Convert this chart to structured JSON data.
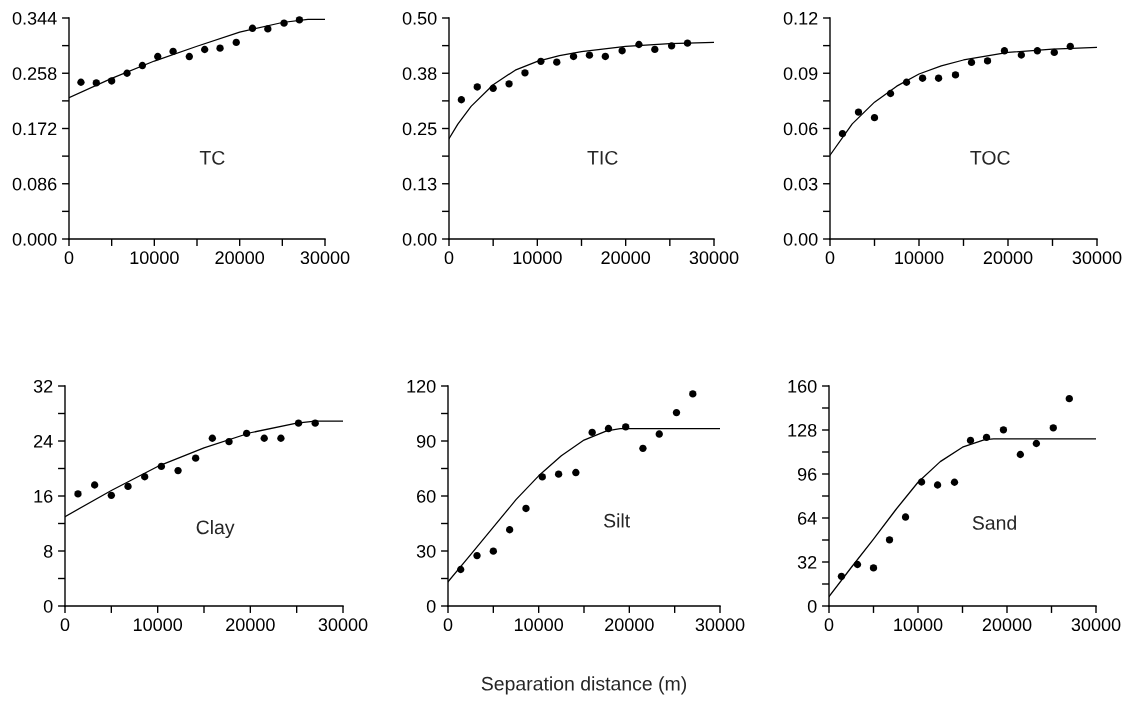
{
  "chart_data": [
    {
      "type": "scatter",
      "annotations": [
        "TC"
      ],
      "xlim": [
        0,
        30000
      ],
      "xticks": [
        0,
        {
          "value": 5000,
          "label": null
        },
        10000,
        {
          "value": 15000,
          "label": null
        },
        20000,
        {
          "value": 25000,
          "label": null
        },
        30000
      ],
      "ylim": [
        0,
        0.344
      ],
      "yticks": [
        {
          "value": 0,
          "label": "0.000"
        },
        {
          "value": 0.043,
          "label": null
        },
        0.086,
        {
          "value": 0.129,
          "label": null
        },
        0.172,
        {
          "value": 0.215,
          "label": null
        },
        0.258,
        {
          "value": 0.301,
          "label": null
        },
        0.344
      ],
      "grid": false,
      "series": [
        {
          "marker": "circle",
          "color": "#000000",
          "x": [
            1400,
            3200,
            5000,
            6800,
            8600,
            10400,
            12200,
            14100,
            15900,
            17700,
            19600,
            21500,
            23300,
            25200,
            27000
          ],
          "values": [
            0.244,
            0.243,
            0.246,
            0.258,
            0.27,
            0.284,
            0.292,
            0.284,
            0.295,
            0.297,
            0.306,
            0.328,
            0.327,
            0.336,
            0.341
          ]
        },
        {
          "type": "line",
          "color": "#000000",
          "x": [
            0,
            5000,
            10000,
            15000,
            20000,
            25000,
            28000,
            30000
          ],
          "values": [
            0.22,
            0.25,
            0.277,
            0.3,
            0.322,
            0.337,
            0.342,
            0.342
          ]
        }
      ]
    },
    {
      "type": "scatter",
      "annotations": [
        "TIC"
      ],
      "xlim": [
        0,
        30000
      ],
      "xticks": [
        0,
        {
          "value": 5000,
          "label": null
        },
        10000,
        {
          "value": 15000,
          "label": null
        },
        20000,
        {
          "value": 25000,
          "label": null
        },
        30000
      ],
      "ylim": [
        0,
        0.5
      ],
      "yticks": [
        {
          "value": 0,
          "label": "0.00"
        },
        {
          "value": 0.0625,
          "label": null
        },
        {
          "value": 0.125,
          "label": "0.13"
        },
        {
          "value": 0.1875,
          "label": null
        },
        {
          "value": 0.25,
          "label": "0.25"
        },
        {
          "value": 0.3125,
          "label": null
        },
        {
          "value": 0.375,
          "label": "0.38"
        },
        {
          "value": 0.4375,
          "label": null
        },
        {
          "value": 0.5,
          "label": "0.50"
        }
      ],
      "grid": false,
      "series": [
        {
          "marker": "circle",
          "color": "#000000",
          "x": [
            1400,
            3200,
            5000,
            6800,
            8600,
            10400,
            12200,
            14100,
            15900,
            17700,
            19600,
            21500,
            23300,
            25200,
            27000
          ],
          "values": [
            0.315,
            0.344,
            0.341,
            0.351,
            0.376,
            0.402,
            0.4,
            0.413,
            0.416,
            0.413,
            0.426,
            0.44,
            0.429,
            0.437,
            0.443
          ]
        },
        {
          "type": "line",
          "color": "#000000",
          "x": [
            0,
            1000,
            2500,
            5000,
            7500,
            10000,
            12500,
            15000,
            20000,
            25000,
            30000
          ],
          "values": [
            0.227,
            0.26,
            0.3,
            0.349,
            0.382,
            0.402,
            0.415,
            0.424,
            0.436,
            0.442,
            0.445
          ]
        }
      ]
    },
    {
      "type": "scatter",
      "annotations": [
        "TOC"
      ],
      "xlim": [
        0,
        30000
      ],
      "xticks": [
        0,
        {
          "value": 5000,
          "label": null
        },
        10000,
        {
          "value": 15000,
          "label": null
        },
        20000,
        {
          "value": 25000,
          "label": null
        },
        30000
      ],
      "ylim": [
        0,
        0.12
      ],
      "yticks": [
        {
          "value": 0,
          "label": "0.00"
        },
        {
          "value": 0.015,
          "label": null
        },
        {
          "value": 0.03,
          "label": "0.03"
        },
        {
          "value": 0.045,
          "label": null
        },
        {
          "value": 0.06,
          "label": "0.06"
        },
        {
          "value": 0.075,
          "label": null
        },
        {
          "value": 0.09,
          "label": "0.09"
        },
        {
          "value": 0.105,
          "label": null
        },
        {
          "value": 0.12,
          "label": "0.12"
        }
      ],
      "grid": false,
      "series": [
        {
          "marker": "circle",
          "color": "#000000",
          "x": [
            1400,
            3200,
            5000,
            6800,
            8600,
            10400,
            12200,
            14100,
            15900,
            17700,
            19600,
            21500,
            23300,
            25200,
            27000
          ],
          "values": [
            0.0572,
            0.0689,
            0.0659,
            0.079,
            0.0851,
            0.0873,
            0.0873,
            0.0891,
            0.0959,
            0.0967,
            0.1022,
            0.0999,
            0.1022,
            0.1013,
            0.1046
          ]
        },
        {
          "type": "line",
          "color": "#000000",
          "x": [
            0,
            2500,
            5000,
            7500,
            10000,
            12500,
            15000,
            20000,
            25000,
            30000
          ],
          "values": [
            0.0455,
            0.0625,
            0.0743,
            0.083,
            0.0896,
            0.094,
            0.0972,
            0.1013,
            0.1031,
            0.104
          ]
        }
      ]
    },
    {
      "type": "scatter",
      "annotations": [
        "Clay"
      ],
      "xlim": [
        0,
        30000
      ],
      "xticks": [
        0,
        {
          "value": 5000,
          "label": null
        },
        10000,
        {
          "value": 15000,
          "label": null
        },
        20000,
        {
          "value": 25000,
          "label": null
        },
        30000
      ],
      "ylim": [
        0,
        32
      ],
      "yticks": [
        0,
        {
          "value": 4,
          "label": null
        },
        8,
        {
          "value": 12,
          "label": null
        },
        16,
        {
          "value": 20,
          "label": null
        },
        24,
        {
          "value": 28,
          "label": null
        },
        32
      ],
      "grid": false,
      "series": [
        {
          "marker": "circle",
          "color": "#000000",
          "x": [
            1400,
            3200,
            5000,
            6800,
            8600,
            10400,
            12200,
            14100,
            15900,
            17700,
            19600,
            21500,
            23300,
            25200,
            27000
          ],
          "values": [
            16.3,
            17.6,
            16.1,
            17.4,
            18.8,
            20.3,
            19.7,
            21.5,
            24.4,
            23.9,
            25.1,
            24.4,
            24.4,
            26.6,
            26.6
          ]
        },
        {
          "type": "line",
          "color": "#000000",
          "x": [
            0,
            5000,
            10000,
            15000,
            20000,
            25000,
            27000,
            30000
          ],
          "values": [
            13.0,
            16.8,
            20.3,
            23.0,
            25.2,
            26.6,
            26.9,
            26.9
          ]
        }
      ]
    },
    {
      "type": "scatter",
      "annotations": [
        "Silt"
      ],
      "xlabel": "Separation distance (m)",
      "xlim": [
        0,
        30000
      ],
      "xticks": [
        0,
        {
          "value": 5000,
          "label": null
        },
        10000,
        {
          "value": 15000,
          "label": null
        },
        20000,
        {
          "value": 25000,
          "label": null
        },
        30000
      ],
      "ylim": [
        0,
        120
      ],
      "yticks": [
        0,
        {
          "value": 15,
          "label": null
        },
        30,
        {
          "value": 45,
          "label": null
        },
        60,
        {
          "value": 75,
          "label": null
        },
        90,
        {
          "value": 105,
          "label": null
        },
        120
      ],
      "grid": false,
      "series": [
        {
          "marker": "circle",
          "color": "#000000",
          "x": [
            1400,
            3200,
            5000,
            6800,
            8600,
            10400,
            12200,
            14100,
            15900,
            17700,
            19600,
            21500,
            23300,
            25200,
            27000
          ],
          "values": [
            19.9,
            27.5,
            29.9,
            41.6,
            53.2,
            70.4,
            71.9,
            72.8,
            94.7,
            96.8,
            97.7,
            86.0,
            93.8,
            105.5,
            115.7
          ]
        },
        {
          "type": "line",
          "color": "#000000",
          "x": [
            0,
            2500,
            5000,
            7500,
            10000,
            12500,
            15000,
            17500,
            19000,
            30000
          ],
          "values": [
            13.2,
            28,
            43,
            58,
            71,
            82,
            90.5,
            95.5,
            96.8,
            96.8
          ]
        }
      ]
    },
    {
      "type": "scatter",
      "annotations": [
        "Sand"
      ],
      "xlim": [
        0,
        30000
      ],
      "xticks": [
        0,
        {
          "value": 5000,
          "label": null
        },
        10000,
        {
          "value": 15000,
          "label": null
        },
        20000,
        {
          "value": 25000,
          "label": null
        },
        30000
      ],
      "ylim": [
        0,
        160
      ],
      "yticks": [
        0,
        {
          "value": 16,
          "label": null
        },
        32,
        {
          "value": 48,
          "label": null
        },
        64,
        {
          "value": 80,
          "label": null
        },
        96,
        {
          "value": 112,
          "label": null
        },
        128,
        {
          "value": 144,
          "label": null
        },
        160
      ],
      "grid": false,
      "series": [
        {
          "marker": "circle",
          "color": "#000000",
          "x": [
            1400,
            3200,
            5000,
            6800,
            8600,
            10400,
            12200,
            14100,
            15900,
            17700,
            19600,
            21500,
            23300,
            25200,
            27000
          ],
          "values": [
            21.6,
            30.2,
            27.7,
            48.1,
            64.7,
            90.2,
            88.0,
            90.0,
            120.4,
            122.6,
            128.1,
            110.2,
            118.2,
            129.6,
            150.8
          ]
        },
        {
          "type": "line",
          "color": "#000000",
          "x": [
            0,
            2500,
            5000,
            7500,
            10000,
            12500,
            15000,
            17500,
            18500,
            30000
          ],
          "values": [
            6.8,
            28,
            48.6,
            70,
            90,
            105,
            115.5,
            121,
            121.6,
            121.6
          ]
        }
      ]
    }
  ]
}
